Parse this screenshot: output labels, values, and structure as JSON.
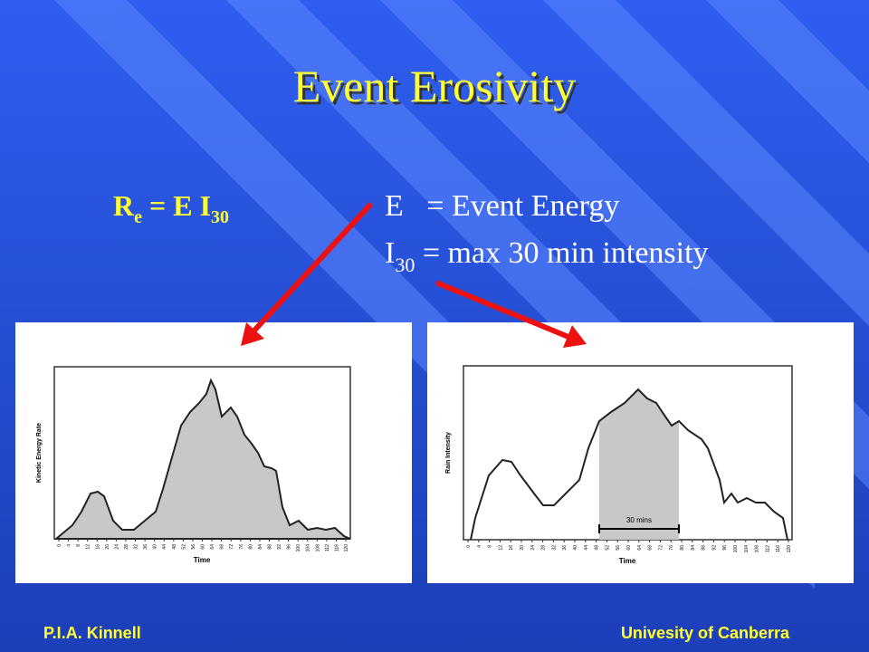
{
  "title": "Event Erosivity",
  "formula": {
    "lhs": "R",
    "lhs_sub": "e",
    "rhs": " = E I",
    "rhs_sub": "30"
  },
  "definitions": {
    "energy": "E   = Event Energy",
    "intensity": {
      "symbol": "I",
      "sub": "30",
      "text": " = max 30 min intensity"
    }
  },
  "charts": [
    {
      "y_label": "Kinetic Energy Rate",
      "x_label": "Time",
      "x_ticks": [
        0,
        4,
        8,
        12,
        16,
        20,
        24,
        28,
        32,
        36,
        40,
        44,
        48,
        52,
        56,
        60,
        64,
        68,
        72,
        76,
        80,
        84,
        88,
        92,
        96,
        100,
        104,
        108,
        112,
        116,
        120
      ]
    },
    {
      "y_label": "Rain Intensity",
      "x_label": "Time",
      "annotation": "30 mins",
      "x_ticks": [
        0,
        4,
        8,
        12,
        16,
        20,
        24,
        28,
        32,
        36,
        40,
        44,
        48,
        52,
        56,
        60,
        64,
        68,
        72,
        76,
        80,
        84,
        88,
        92,
        96,
        100,
        104,
        108,
        112,
        116,
        120
      ]
    }
  ],
  "footer": {
    "left": "P.I.A. Kinnell",
    "right": "Univesity of Canberra"
  }
}
